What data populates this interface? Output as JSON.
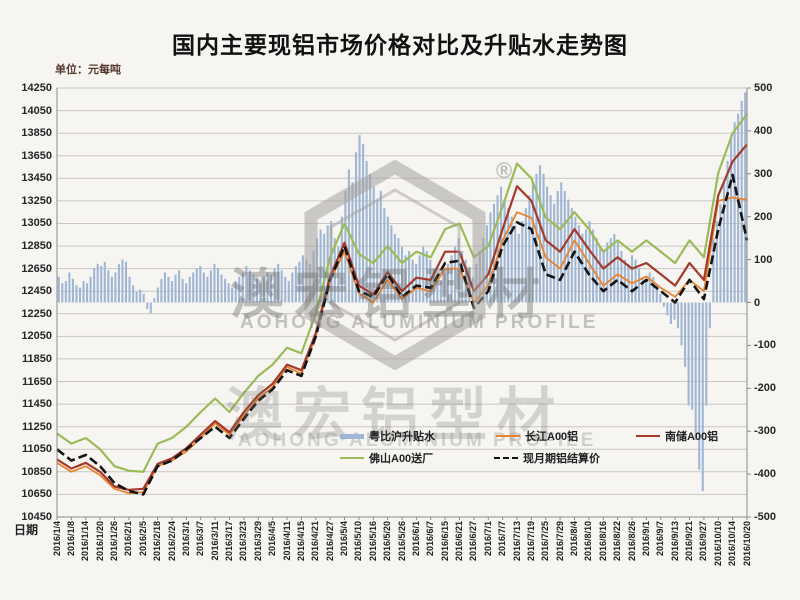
{
  "page": {
    "background": "#f7f5f2"
  },
  "watermark": {
    "cn": "澳宏铝型材",
    "en": "AOHONG ALUMINIUM PROFILE",
    "registered": "®"
  },
  "chart_data": {
    "type": "combo-bar-line",
    "title": "国内主要现铝市场价格对比及升贴水走势图",
    "unit_label": "单位：元每吨",
    "x_axis_label": "日期",
    "grid": true,
    "legend_position": "bottom-inside",
    "left_axis": {
      "min": 10450,
      "max": 14250,
      "step": 200,
      "ticks": [
        14250,
        14050,
        13850,
        13650,
        13450,
        13250,
        13050,
        12850,
        12650,
        12450,
        12250,
        12050,
        11850,
        11650,
        11450,
        11250,
        11050,
        10850,
        10650,
        10450
      ]
    },
    "right_axis": {
      "min": -500,
      "max": 500,
      "step": 100,
      "ticks": [
        500,
        400,
        300,
        200,
        100,
        0,
        -100,
        -200,
        -300,
        -400,
        -500
      ]
    },
    "categories": [
      "2016/1/4",
      "2016/1/8",
      "2016/1/14",
      "2016/1/20",
      "2016/1/26",
      "2016/2/1",
      "2016/2/5",
      "2016/2/18",
      "2016/2/24",
      "2016/3/1",
      "2016/3/7",
      "2016/3/11",
      "2016/3/17",
      "2016/3/23",
      "2016/3/29",
      "2016/4/5",
      "2016/4/11",
      "2016/4/15",
      "2016/4/21",
      "2016/4/27",
      "2016/5/4",
      "2016/5/10",
      "2016/5/16",
      "2016/5/20",
      "2016/5/26",
      "2016/6/1",
      "2016/6/7",
      "2016/6/15",
      "2016/6/21",
      "2016/6/27",
      "2016/7/1",
      "2016/7/7",
      "2016/7/13",
      "2016/7/19",
      "2016/7/25",
      "2016/7/29",
      "2016/8/4",
      "2016/8/10",
      "2016/8/16",
      "2016/8/22",
      "2016/8/26",
      "2016/9/1",
      "2016/9/7",
      "2016/9/13",
      "2016/9/21",
      "2016/9/27",
      "2016/10/10",
      "2016/10/14",
      "2016/10/20"
    ],
    "bars": {
      "name": "粤比沪升贴水",
      "color": "#9FB7D4",
      "axis": "right",
      "values": [
        60,
        45,
        50,
        70,
        55,
        40,
        35,
        50,
        45,
        60,
        80,
        90,
        85,
        95,
        75,
        60,
        70,
        90,
        100,
        95,
        60,
        40,
        25,
        30,
        20,
        -15,
        -25,
        10,
        35,
        55,
        70,
        60,
        50,
        65,
        75,
        55,
        45,
        60,
        70,
        80,
        85,
        70,
        60,
        75,
        90,
        80,
        65,
        55,
        45,
        35,
        50,
        60,
        70,
        85,
        75,
        65,
        55,
        45,
        60,
        70,
        65,
        80,
        90,
        75,
        60,
        50,
        70,
        85,
        95,
        110,
        100,
        90,
        120,
        150,
        170,
        160,
        180,
        190,
        150,
        130,
        200,
        260,
        310,
        280,
        350,
        390,
        370,
        330,
        300,
        270,
        240,
        260,
        220,
        200,
        180,
        160,
        150,
        130,
        110,
        120,
        100,
        90,
        110,
        130,
        120,
        100,
        80,
        60,
        50,
        70,
        90,
        110,
        130,
        150,
        120,
        100,
        80,
        60,
        90,
        120,
        150,
        180,
        210,
        230,
        250,
        270,
        240,
        220,
        200,
        180,
        160,
        190,
        220,
        250,
        280,
        300,
        320,
        300,
        270,
        250,
        230,
        260,
        280,
        260,
        240,
        220,
        200,
        180,
        160,
        170,
        190,
        170,
        150,
        130,
        120,
        140,
        150,
        160,
        140,
        120,
        100,
        90,
        110,
        100,
        80,
        60,
        50,
        70,
        60,
        40,
        20,
        -10,
        -30,
        -50,
        -40,
        -60,
        -100,
        -150,
        -240,
        -250,
        -320,
        -390,
        -440,
        -240,
        -60,
        150,
        190,
        230,
        280,
        330,
        390,
        420,
        440,
        470,
        490
      ]
    },
    "series": [
      {
        "name": "长江A00铝",
        "color": "#E8832E",
        "width": 1.8,
        "values": [
          10930,
          10850,
          10900,
          10820,
          10700,
          10660,
          10670,
          10900,
          10950,
          11030,
          11150,
          11280,
          11180,
          11350,
          11500,
          11600,
          11780,
          11720,
          12050,
          12550,
          12800,
          12430,
          12350,
          12550,
          12380,
          12480,
          12450,
          12650,
          12650,
          12350,
          12500,
          12900,
          13150,
          13100,
          12750,
          12650,
          12900,
          12700,
          12500,
          12600,
          12520,
          12580,
          12480,
          12400,
          12550,
          12450,
          13250,
          13280,
          13260
        ]
      },
      {
        "name": "南储A00铝",
        "color": "#A23B2B",
        "width": 2.2,
        "values": [
          10960,
          10880,
          10930,
          10850,
          10720,
          10690,
          10700,
          10920,
          10970,
          11060,
          11180,
          11300,
          11200,
          11380,
          11530,
          11630,
          11800,
          11750,
          12080,
          12580,
          12880,
          12500,
          12420,
          12620,
          12450,
          12570,
          12550,
          12800,
          12800,
          12450,
          12600,
          13000,
          13380,
          13250,
          12900,
          12800,
          13000,
          12820,
          12650,
          12750,
          12650,
          12700,
          12600,
          12500,
          12700,
          12550,
          13300,
          13600,
          13750
        ]
      },
      {
        "name": "佛山A00送厂",
        "color": "#9BBB59",
        "width": 2.2,
        "values": [
          11190,
          11100,
          11150,
          11050,
          10900,
          10860,
          10850,
          11100,
          11150,
          11250,
          11380,
          11500,
          11380,
          11550,
          11700,
          11800,
          11950,
          11900,
          12250,
          12750,
          13050,
          12780,
          12700,
          12850,
          12700,
          12800,
          12750,
          13000,
          13050,
          12750,
          12850,
          13200,
          13580,
          13450,
          13100,
          13000,
          13150,
          13000,
          12800,
          12900,
          12800,
          12900,
          12800,
          12700,
          12900,
          12750,
          13500,
          13850,
          14020
        ]
      },
      {
        "name": "现月期铝结算价",
        "color": "#141414",
        "width": 2.6,
        "dash": "9 4",
        "values": [
          11050,
          10950,
          11000,
          10900,
          10750,
          10680,
          10650,
          10900,
          10950,
          11050,
          11150,
          11250,
          11150,
          11320,
          11480,
          11580,
          11750,
          11700,
          12050,
          12550,
          12850,
          12450,
          12400,
          12600,
          12400,
          12500,
          12480,
          12700,
          12720,
          12300,
          12450,
          12850,
          13060,
          13000,
          12600,
          12550,
          12800,
          12600,
          12450,
          12550,
          12450,
          12550,
          12450,
          12350,
          12550,
          12380,
          13000,
          13480,
          12900
        ]
      }
    ]
  }
}
